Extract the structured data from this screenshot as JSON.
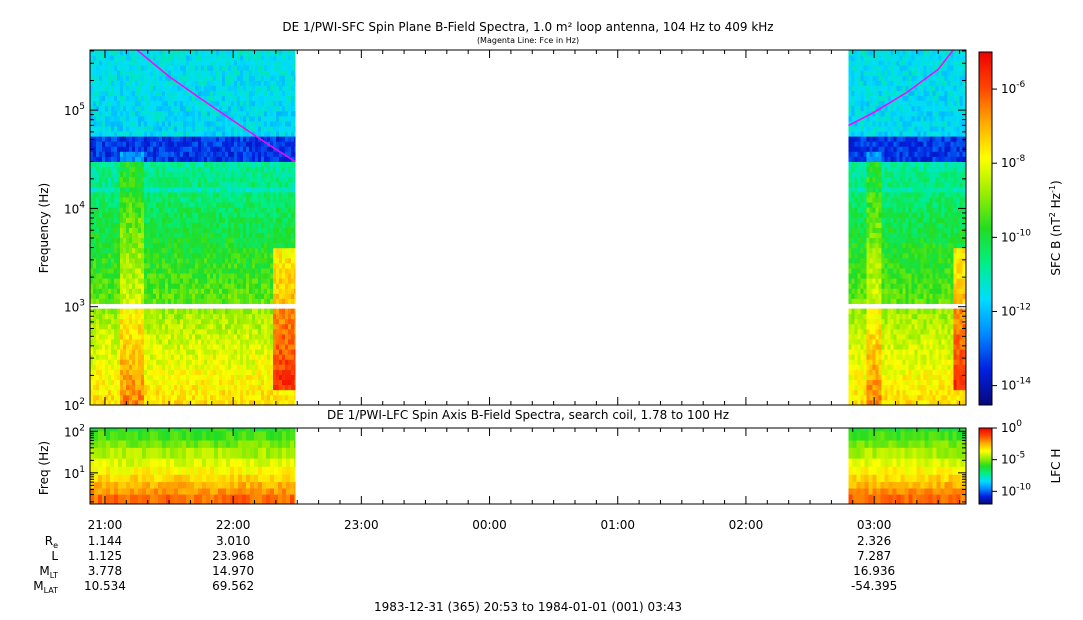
{
  "chart_data": [
    {
      "type": "heatmap",
      "title": "DE 1/PWI-SFC  Spin Plane B-Field Spectra, 1.0 m² loop antenna, 104 Hz to 409 kHz",
      "subtitle": "(Magenta Line: Fce in Hz)",
      "ylabel": "Frequency (Hz)",
      "y_scale": "log",
      "ylim": [
        100,
        409000
      ],
      "y_ticks": [
        {
          "value": 100,
          "base": "10",
          "exp": "2"
        },
        {
          "value": 1000,
          "base": "10",
          "exp": "3"
        },
        {
          "value": 10000,
          "base": "10",
          "exp": "4"
        },
        {
          "value": 100000,
          "base": "10",
          "exp": "5"
        }
      ],
      "colorbar": {
        "label_text": "SFC B (nT",
        "label_sup1": "2",
        "label_mid": " Hz",
        "label_sup2": "-1",
        "label_end": ")",
        "scale": "log",
        "range": [
          3e-15,
          1e-05
        ],
        "ticks": [
          {
            "value": 1e-06,
            "base": "10",
            "exp": "-6"
          },
          {
            "value": 1e-08,
            "base": "10",
            "exp": "-8"
          },
          {
            "value": 1e-10,
            "base": "10",
            "exp": "-10"
          },
          {
            "value": 1e-12,
            "base": "10",
            "exp": "-12"
          },
          {
            "value": 1e-14,
            "base": "10",
            "exp": "-14"
          }
        ],
        "colors": [
          "#08087a",
          "#0020e0",
          "#0088ff",
          "#00ddff",
          "#00ee88",
          "#22dd22",
          "#99ee00",
          "#ffff00",
          "#ffaa00",
          "#ff4400",
          "#ee0000"
        ]
      },
      "data_intervals": [
        [
          "1983-12-31T20:53",
          "1983-12-31T22:29"
        ],
        [
          "1984-01-01T02:48",
          "1984-01-01T03:43"
        ]
      ],
      "gap_band_hz": [
        910,
        1020
      ],
      "series": [
        {
          "name": "Fce",
          "color": "#ff00ff",
          "segments": [
            {
              "x": [
                "1983-12-31T21:15",
                "1983-12-31T21:30",
                "1983-12-31T21:45",
                "1983-12-31T22:00",
                "1983-12-31T22:15",
                "1983-12-31T22:29"
              ],
              "y": [
                409000,
                220000,
                130000,
                78000,
                47000,
                30000
              ]
            },
            {
              "x": [
                "1984-01-01T02:48",
                "1984-01-01T03:00",
                "1984-01-01T03:15",
                "1984-01-01T03:30",
                "1984-01-01T03:37"
              ],
              "y": [
                70000,
                95000,
                150000,
                260000,
                409000
              ]
            }
          ]
        }
      ]
    },
    {
      "type": "heatmap",
      "title": "DE 1/PWI-LFC  Spin Axis B-Field Spectra, search coil, 1.78 to 100 Hz",
      "ylabel": "Freq (Hz)",
      "y_scale": "log",
      "ylim": [
        1.78,
        120
      ],
      "y_ticks": [
        {
          "value": 10,
          "base": "10",
          "exp": "1"
        },
        {
          "value": 100,
          "base": "10",
          "exp": "2"
        }
      ],
      "colorbar": {
        "label": "LFC H",
        "scale": "log",
        "range": [
          1e-12,
          1
        ],
        "ticks": [
          {
            "value": 1,
            "base": "10",
            "exp": "0"
          },
          {
            "value": 1e-05,
            "base": "10",
            "exp": "-5"
          },
          {
            "value": 1e-10,
            "base": "10",
            "exp": "-10"
          }
        ],
        "colors": [
          "#08087a",
          "#0020e0",
          "#0088ff",
          "#00ddff",
          "#00ee88",
          "#22dd22",
          "#99ee00",
          "#ffff00",
          "#ffaa00",
          "#ff4400",
          "#ee0000"
        ]
      },
      "data_intervals": [
        [
          "1983-12-31T20:53",
          "1983-12-31T22:29"
        ],
        [
          "1984-01-01T02:48",
          "1984-01-01T03:43"
        ]
      ]
    }
  ],
  "time_axis": {
    "start": "1983-12-31T20:53",
    "end": "1984-01-01T03:43",
    "ticks": [
      {
        "time": "1983-12-31T21:00",
        "label": "21:00"
      },
      {
        "time": "1983-12-31T22:00",
        "label": "22:00"
      },
      {
        "time": "1983-12-31T23:00",
        "label": "23:00"
      },
      {
        "time": "1984-01-01T00:00",
        "label": "00:00"
      },
      {
        "time": "1984-01-01T01:00",
        "label": "01:00"
      },
      {
        "time": "1984-01-01T02:00",
        "label": "02:00"
      },
      {
        "time": "1984-01-01T03:00",
        "label": "03:00"
      }
    ],
    "range_label": "1983-12-31 (365) 20:53 to 1984-01-01 (001) 03:43"
  },
  "ephemeris": {
    "rows": [
      {
        "name": "Re",
        "label": "R",
        "sub": "e",
        "values": [
          "1.144",
          "3.010",
          "2.326"
        ]
      },
      {
        "name": "L",
        "label": "L",
        "sub": "",
        "values": [
          "1.125",
          "23.968",
          "7.287"
        ]
      },
      {
        "name": "MLT",
        "label": "M",
        "sub": "LT",
        "values": [
          "3.778",
          "14.970",
          "16.936"
        ]
      },
      {
        "name": "MLAT",
        "label": "M",
        "sub": "LAT",
        "values": [
          "10.534",
          "69.562",
          "-54.395"
        ]
      }
    ],
    "times": [
      "1983-12-31T21:00",
      "1983-12-31T22:00",
      "1984-01-01T03:00"
    ]
  }
}
